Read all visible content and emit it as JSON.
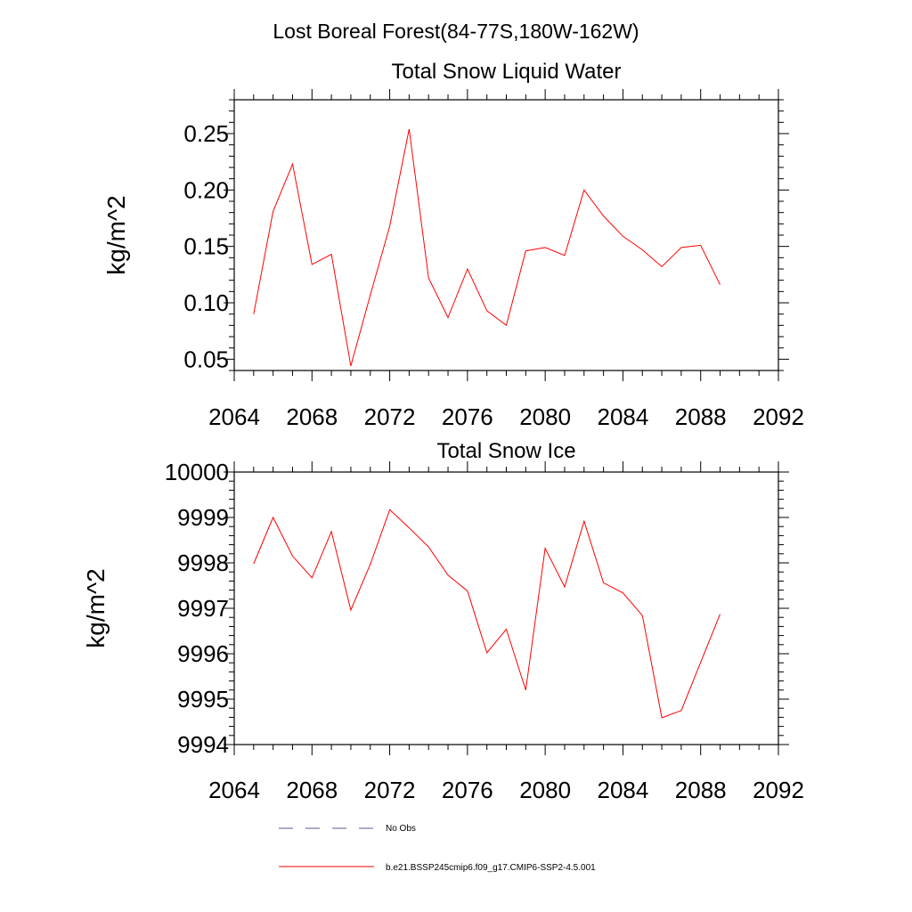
{
  "suptitle": "Lost Boreal Forest(84-77S,180W-162W)",
  "chart_data": [
    {
      "type": "line",
      "title": "Total Snow Liquid Water",
      "ylabel": "kg/m^2",
      "xlabel": "",
      "xlim": [
        2064,
        2092
      ],
      "ylim": [
        0.04,
        0.28
      ],
      "xticks": [
        "2064",
        "2068",
        "2072",
        "2076",
        "2080",
        "2084",
        "2088",
        "2092"
      ],
      "yticks": [
        "0.05",
        "0.10",
        "0.15",
        "0.20",
        "0.25"
      ],
      "grid": false,
      "color": "#ff0000",
      "x": [
        2065,
        2066,
        2067,
        2068,
        2069,
        2070,
        2071,
        2072,
        2073,
        2074,
        2075,
        2076,
        2077,
        2078,
        2079,
        2080,
        2081,
        2082,
        2083,
        2084,
        2085,
        2086,
        2087,
        2088,
        2089
      ],
      "values": [
        0.09,
        0.181,
        0.223,
        0.134,
        0.143,
        0.044,
        0.107,
        0.168,
        0.254,
        0.122,
        0.087,
        0.13,
        0.093,
        0.08,
        0.146,
        0.149,
        0.142,
        0.2,
        0.177,
        0.159,
        0.147,
        0.132,
        0.149,
        0.151,
        0.116
      ]
    },
    {
      "type": "line",
      "title": "Total Snow Ice",
      "ylabel": "kg/m^2",
      "xlabel": "",
      "xlim": [
        2064,
        2092
      ],
      "ylim": [
        9994,
        10000
      ],
      "xticks": [
        "2064",
        "2068",
        "2072",
        "2076",
        "2080",
        "2084",
        "2088",
        "2092"
      ],
      "yticks": [
        "9994",
        "9995",
        "9996",
        "9997",
        "9998",
        "9999",
        "10000"
      ],
      "grid": false,
      "color": "#ff0000",
      "x": [
        2065,
        2066,
        2067,
        2068,
        2069,
        2070,
        2071,
        2072,
        2073,
        2074,
        2075,
        2076,
        2077,
        2078,
        2079,
        2080,
        2081,
        2082,
        2083,
        2084,
        2085,
        2086,
        2087,
        2088,
        2089
      ],
      "values": [
        9997.98,
        9999.0,
        9998.15,
        9997.67,
        9998.69,
        9996.96,
        9997.97,
        9999.17,
        9998.77,
        9998.35,
        9997.73,
        9997.38,
        9996.02,
        9996.54,
        9995.2,
        9998.32,
        9997.47,
        9998.92,
        9997.56,
        9997.34,
        9996.84,
        9994.59,
        9994.75,
        9995.81,
        9996.87
      ]
    }
  ],
  "legend": [
    {
      "label": "No Obs",
      "style": "dashed",
      "color": "#5a5a8c"
    },
    {
      "label": "b.e21.BSSP245cmip6.f09_g17.CMIP6-SSP2-4.5.001",
      "style": "solid",
      "color": "#ff0000"
    }
  ]
}
